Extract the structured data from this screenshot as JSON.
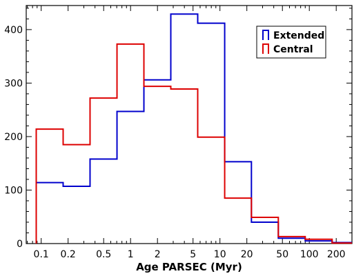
{
  "chart_data": {
    "type": "histogram",
    "xlabel": "Age PARSEC (Myr)",
    "ylabel": "",
    "x_scale": "log",
    "xlim": [
      0.068,
      300
    ],
    "ylim": [
      0,
      445
    ],
    "x_ticks": [
      0.1,
      0.2,
      0.5,
      1,
      2,
      5,
      10,
      20,
      50,
      100,
      200
    ],
    "x_tick_labels": [
      "0.1",
      "0.2",
      "0.5",
      "1",
      "2",
      "5",
      "10",
      "20",
      "50",
      "100",
      "200"
    ],
    "y_ticks": [
      0,
      100,
      200,
      300,
      400
    ],
    "y_tick_labels": [
      "0",
      "100",
      "200",
      "300",
      "400"
    ],
    "bin_edges": [
      0.088,
      0.176,
      0.352,
      0.705,
      1.41,
      2.82,
      5.64,
      11.3,
      22.5,
      45,
      90,
      180,
      360
    ],
    "series": [
      {
        "name": "Extended",
        "color": "#0000cc",
        "counts": [
          114,
          107,
          158,
          247,
          306,
          429,
          412,
          153,
          40,
          10,
          5,
          2
        ]
      },
      {
        "name": "Central",
        "color": "#dd0000",
        "counts": [
          214,
          185,
          272,
          373,
          294,
          289,
          199,
          85,
          49,
          13,
          8,
          1
        ]
      }
    ],
    "legend_position": "top-right",
    "grid": false
  }
}
